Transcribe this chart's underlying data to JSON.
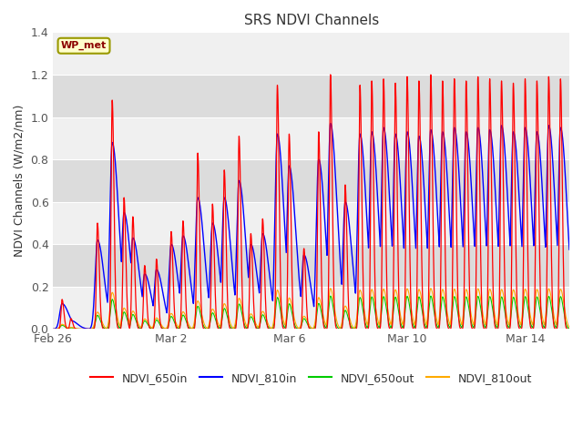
{
  "title": "SRS NDVI Channels",
  "ylabel": "NDVI Channels (W/m2/nm)",
  "annotation": "WP_met",
  "annotation_bg": "#ffffcc",
  "annotation_border": "#999900",
  "ylim": [
    0.0,
    1.4
  ],
  "plot_bg": "#f0f0f0",
  "series_colors": {
    "NDVI_650in": "#ff0000",
    "NDVI_810in": "#0000ff",
    "NDVI_650out": "#00cc00",
    "NDVI_810out": "#ffaa00"
  },
  "x_tick_labels": [
    "Feb 26",
    "Mar 2",
    "Mar 6",
    "Mar 10",
    "Mar 14"
  ],
  "x_tick_positions": [
    0,
    4,
    8,
    12,
    16
  ],
  "y_ticks": [
    0.0,
    0.2,
    0.4,
    0.6,
    0.8,
    1.0,
    1.2,
    1.4
  ],
  "band_colors": [
    "#f0f0f0",
    "#dcdcdc"
  ],
  "title_fontsize": 11,
  "axis_fontsize": 9,
  "tick_fontsize": 9,
  "legend_fontsize": 9,
  "spike_centers": [
    0.3,
    0.6,
    1.5,
    2.0,
    2.4,
    2.7,
    3.1,
    3.5,
    4.0,
    4.4,
    4.9,
    5.4,
    5.8,
    6.3,
    6.7,
    7.1,
    7.6,
    8.0,
    8.5,
    9.0,
    9.4,
    9.9,
    10.4,
    10.8,
    11.2,
    11.6,
    12.0,
    12.4,
    12.8,
    13.2,
    13.6,
    14.0,
    14.4,
    14.8,
    15.2,
    15.6,
    16.0,
    16.4,
    16.8,
    17.2
  ],
  "red_heights": [
    0.14,
    0.05,
    0.5,
    1.08,
    0.62,
    0.53,
    0.3,
    0.33,
    0.46,
    0.51,
    0.83,
    0.59,
    0.75,
    0.91,
    0.45,
    0.52,
    1.15,
    0.92,
    0.38,
    0.93,
    1.2,
    0.68,
    1.15,
    1.17,
    1.18,
    1.16,
    1.19,
    1.17,
    1.2,
    1.17,
    1.18,
    1.17,
    1.19,
    1.18,
    1.17,
    1.16,
    1.18,
    1.17,
    1.19,
    1.18
  ],
  "blue_heights": [
    0.12,
    0.04,
    0.42,
    0.88,
    0.55,
    0.43,
    0.26,
    0.28,
    0.4,
    0.44,
    0.62,
    0.5,
    0.62,
    0.7,
    0.4,
    0.45,
    0.92,
    0.77,
    0.35,
    0.8,
    0.97,
    0.6,
    0.92,
    0.93,
    0.95,
    0.92,
    0.93,
    0.91,
    0.94,
    0.93,
    0.95,
    0.93,
    0.95,
    0.94,
    0.96,
    0.93,
    0.95,
    0.93,
    0.96,
    0.95
  ],
  "green_scale": 0.13,
  "orange_scale": 0.16,
  "xlim": [
    0,
    17.5
  ]
}
